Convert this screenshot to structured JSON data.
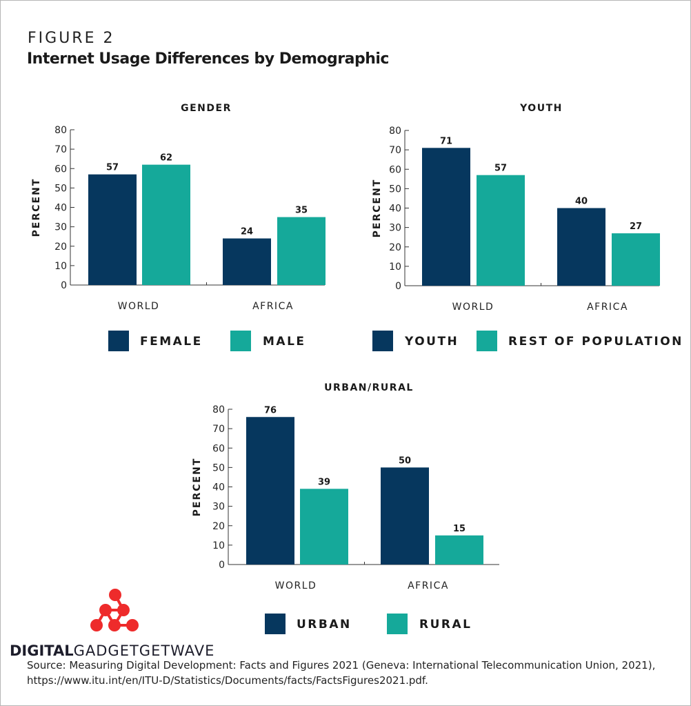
{
  "figure_label": "FIGURE 2",
  "title": "Internet Usage Differences by Demographic",
  "colors": {
    "primary": "#06375e",
    "secondary": "#15a99a"
  },
  "chart_data": [
    {
      "type": "bar",
      "title": "GENDER",
      "ylabel": "PERCENT",
      "ylim": [
        0,
        80
      ],
      "yticks": [
        0,
        10,
        20,
        30,
        40,
        50,
        60,
        70,
        80
      ],
      "categories": [
        "WORLD",
        "AFRICA"
      ],
      "series": [
        {
          "name": "FEMALE",
          "values": [
            57,
            24
          ]
        },
        {
          "name": "MALE",
          "values": [
            62,
            35
          ]
        }
      ]
    },
    {
      "type": "bar",
      "title": "YOUTH",
      "ylabel": "PERCENT",
      "ylim": [
        0,
        80
      ],
      "yticks": [
        0,
        10,
        20,
        30,
        40,
        50,
        60,
        70,
        80
      ],
      "categories": [
        "WORLD",
        "AFRICA"
      ],
      "series": [
        {
          "name": "YOUTH",
          "values": [
            71,
            40
          ]
        },
        {
          "name": "REST OF POPULATION",
          "values": [
            57,
            27
          ]
        }
      ]
    },
    {
      "type": "bar",
      "title": "URBAN/RURAL",
      "ylabel": "PERCENT",
      "ylim": [
        0,
        80
      ],
      "yticks": [
        0,
        10,
        20,
        30,
        40,
        50,
        60,
        70,
        80
      ],
      "categories": [
        "WORLD",
        "AFRICA"
      ],
      "series": [
        {
          "name": "URBAN",
          "values": [
            76,
            50
          ]
        },
        {
          "name": "RURAL",
          "values": [
            39,
            15
          ]
        }
      ]
    }
  ],
  "logo": {
    "bold": "DIGITAL",
    "light": "GADGETGETWAVE"
  },
  "source": {
    "line1": "Source: Measuring Digital Development: Facts and Figures 2021 (Geneva: International Telecommunication Union, 2021),",
    "line2": "https://www.itu.int/en/ITU-D/Statistics/Documents/facts/FactsFigures2021.pdf."
  }
}
